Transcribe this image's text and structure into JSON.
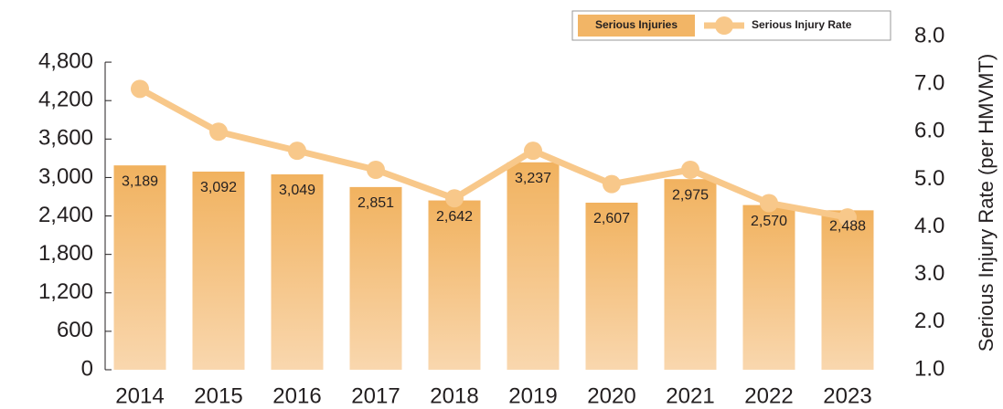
{
  "chart_data": {
    "type": "bar",
    "categories": [
      "2014",
      "2015",
      "2016",
      "2017",
      "2018",
      "2019",
      "2020",
      "2021",
      "2022",
      "2023"
    ],
    "series": [
      {
        "name": "Serious Injuries",
        "color": "#f2b566",
        "values": [
          3189,
          3092,
          3049,
          2851,
          2642,
          3237,
          2607,
          2975,
          2570,
          2488
        ],
        "value_labels": [
          "3,189",
          "3,092",
          "3,049",
          "2,851",
          "2,642",
          "3,237",
          "2,607",
          "2,975",
          "2,570",
          "2,488"
        ]
      },
      {
        "name": "Serious Injury Rate",
        "color": "#f8c88a",
        "axis": "y2",
        "type": "line",
        "values": [
          6.9,
          6.0,
          5.6,
          5.2,
          4.6,
          5.6,
          4.9,
          5.2,
          4.5,
          4.2
        ]
      }
    ],
    "ylim": [
      0,
      5200
    ],
    "yticks": [
      0,
      600,
      {
        "value": 1200,
        "label": "1,200"
      },
      {
        "value": 1800,
        "label": "1,800"
      },
      {
        "value": 2400,
        "label": "2,400"
      },
      {
        "value": 3000,
        "label": "3,000"
      },
      {
        "value": 3600,
        "label": "3,600"
      },
      {
        "value": 4200,
        "label": "4,200"
      },
      {
        "value": 4800,
        "label": "4,800"
      }
    ],
    "y2lim": [
      1,
      8
    ],
    "y2ticks": [
      {
        "value": 1,
        "label": "1.0"
      },
      {
        "value": 2,
        "label": "2.0"
      },
      {
        "value": 3,
        "label": "3.0"
      },
      {
        "value": 4,
        "label": "4.0"
      },
      {
        "value": 5,
        "label": "5.0"
      },
      {
        "value": 6,
        "label": "6.0"
      },
      {
        "value": 7,
        "label": "7.0"
      },
      {
        "value": 8,
        "label": "8.0"
      }
    ],
    "y2label": "Serious Injury Rate (per HMVMT)",
    "legend": "top-right"
  }
}
